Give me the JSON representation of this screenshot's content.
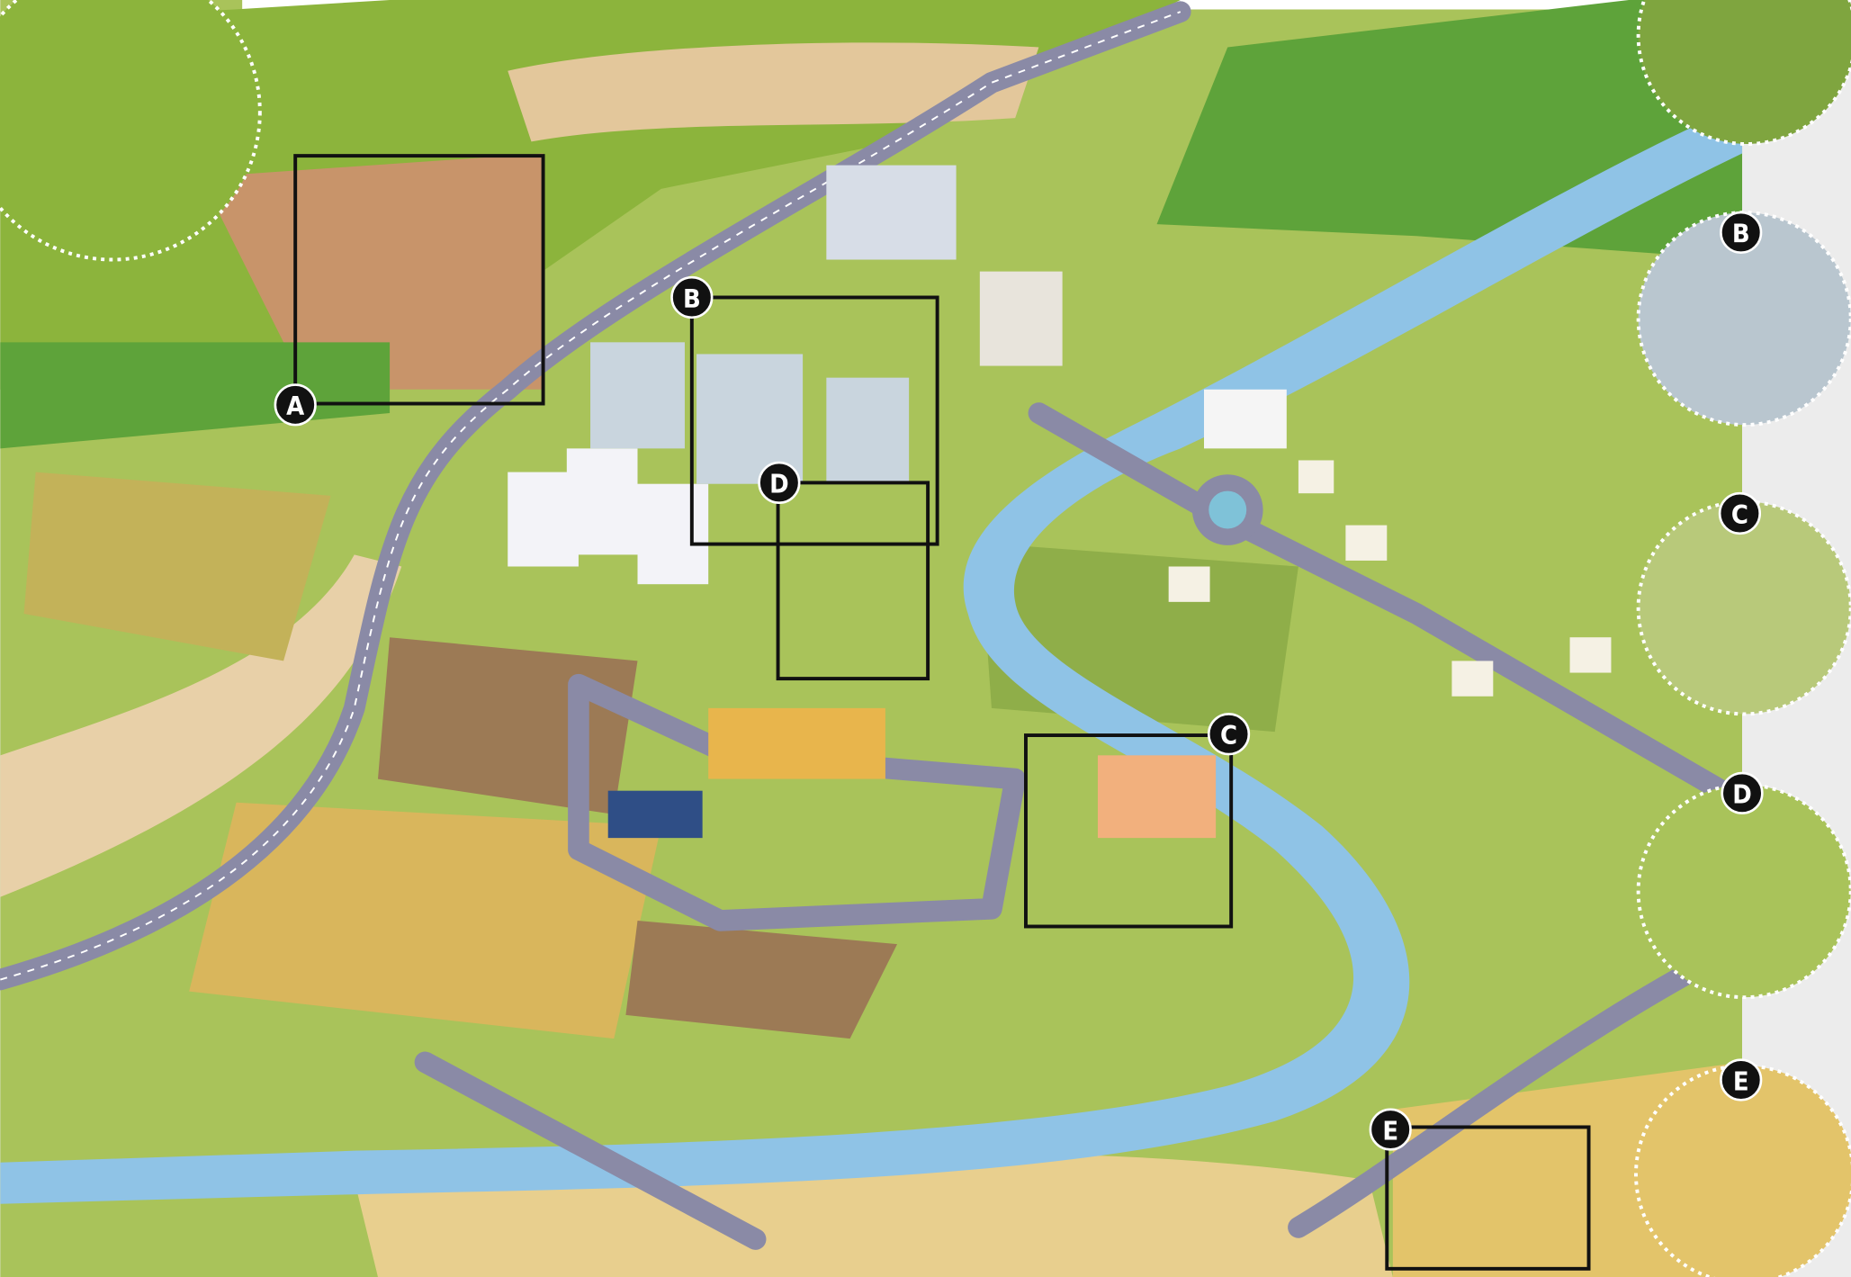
{
  "callouts": [
    {
      "label": "A"
    },
    {
      "label": "B"
    },
    {
      "label": "D"
    },
    {
      "label": "C"
    },
    {
      "label": "E"
    }
  ],
  "insets": [
    {
      "label": "B"
    },
    {
      "label": "C"
    },
    {
      "label": "D"
    },
    {
      "label": "E"
    }
  ]
}
